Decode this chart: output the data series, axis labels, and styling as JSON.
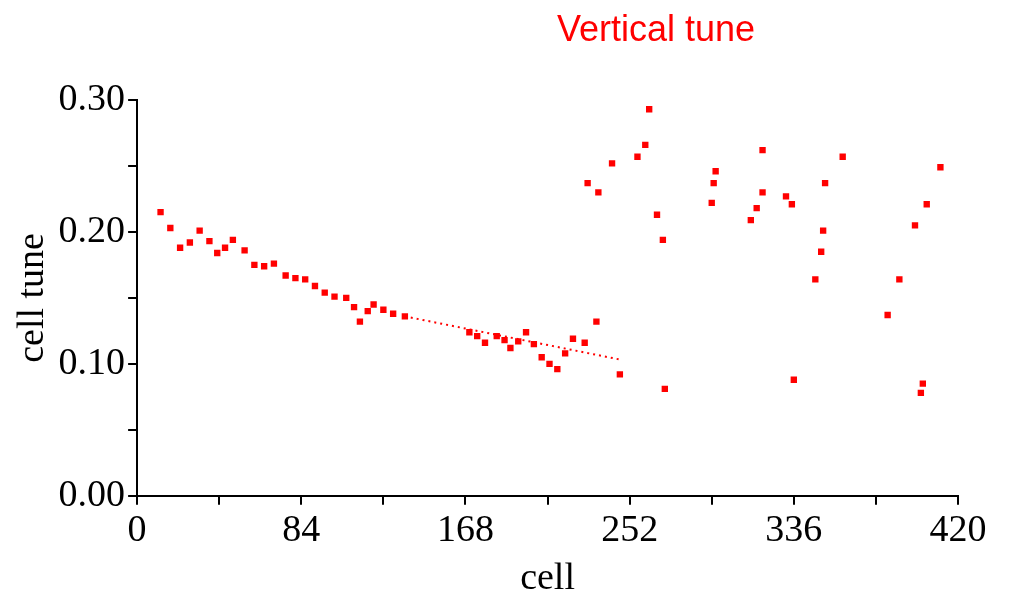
{
  "chart_data": {
    "type": "scatter",
    "title": "Vertical tune",
    "xlabel": "cell",
    "ylabel": "cell tune",
    "xlim": [
      0,
      420
    ],
    "ylim": [
      0,
      0.3
    ],
    "xticks": [
      0,
      {
        "value": 42,
        "label": null
      },
      84,
      {
        "value": 126,
        "label": null
      },
      168,
      {
        "value": 210,
        "label": null
      },
      252,
      {
        "value": 294,
        "label": null
      },
      336,
      {
        "value": 378,
        "label": null
      },
      420
    ],
    "yticks": [
      {
        "value": 0,
        "label": "0.00"
      },
      {
        "value": 0.05,
        "label": null
      },
      {
        "value": 0.1,
        "label": "0.10"
      },
      {
        "value": 0.15,
        "label": null
      },
      {
        "value": 0.2,
        "label": "0.20"
      },
      {
        "value": 0.25,
        "label": null
      },
      {
        "value": 0.3,
        "label": "0.30"
      }
    ],
    "grid": false,
    "legend": false,
    "marker": "square",
    "series": [
      {
        "color": "#ff0000",
        "x": [
          12,
          17,
          22,
          27,
          32,
          37,
          41,
          45,
          49,
          55,
          60,
          65,
          70,
          76,
          81,
          86,
          91,
          96,
          101,
          107,
          111,
          114,
          118,
          121,
          126,
          131,
          137,
          170,
          174,
          178,
          184,
          188,
          191,
          195,
          199,
          203,
          207,
          211,
          215,
          219,
          223,
          229,
          235,
          247,
          230.5,
          236,
          243,
          256,
          260,
          262,
          266,
          269,
          270,
          294,
          295,
          296,
          314,
          317,
          320,
          320,
          332,
          335,
          336,
          347,
          350,
          351,
          352,
          361,
          384,
          390,
          398,
          404,
          411,
          401,
          402
        ],
        "values": [
          0.215,
          0.203,
          0.188,
          0.192,
          0.201,
          0.193,
          0.184,
          0.188,
          0.194,
          0.186,
          0.175,
          0.174,
          0.176,
          0.167,
          0.165,
          0.164,
          0.159,
          0.154,
          0.151,
          0.15,
          0.143,
          0.132,
          0.14,
          0.145,
          0.141,
          0.138,
          0.136,
          0.124,
          0.121,
          0.116,
          0.121,
          0.118,
          0.112,
          0.117,
          0.124,
          0.115,
          0.105,
          0.1,
          0.096,
          0.108,
          0.119,
          0.116,
          0.132,
          0.092,
          0.237,
          0.23,
          0.252,
          0.257,
          0.266,
          0.293,
          0.213,
          0.194,
          0.081,
          0.222,
          0.237,
          0.246,
          0.209,
          0.218,
          0.23,
          0.262,
          0.227,
          0.221,
          0.088,
          0.164,
          0.185,
          0.201,
          0.237,
          0.257,
          0.137,
          0.164,
          0.205,
          0.221,
          0.249,
          0.078,
          0.085
        ]
      },
      {
        "type": "line",
        "color": "#ff0000",
        "line_style": "dotted",
        "marker": "none",
        "x": [
          137,
          248
        ],
        "values": [
          0.136,
          0.103
        ]
      }
    ]
  }
}
